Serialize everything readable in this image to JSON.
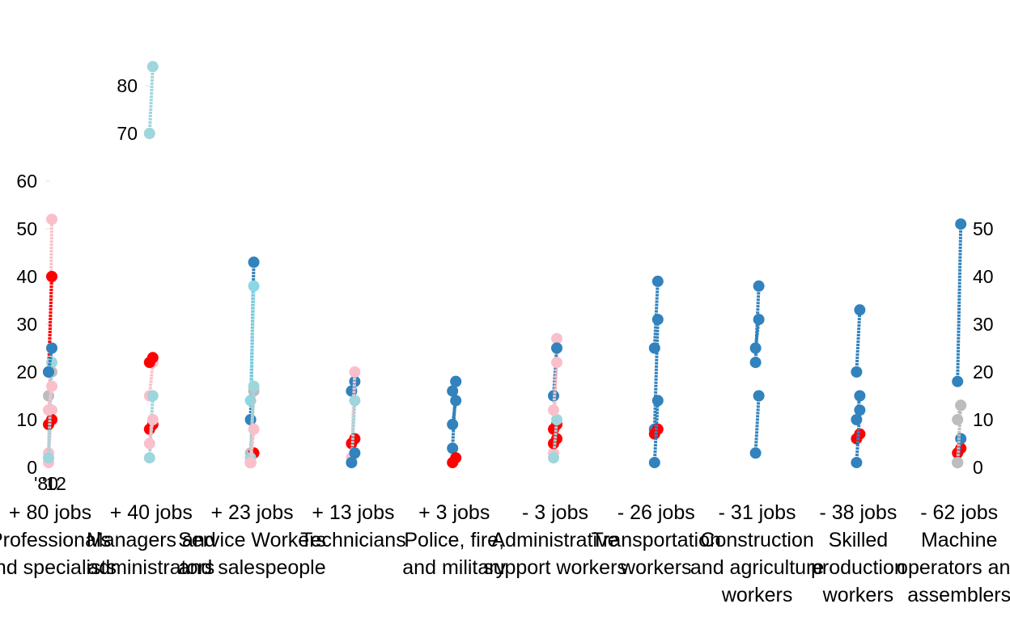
{
  "chart_data": {
    "type": "line",
    "title": "",
    "xlabel": "",
    "ylabel": "",
    "grid": false,
    "legend": "none",
    "time_labels": [
      "'80",
      "'12"
    ],
    "left_axis": {
      "ylim": [
        0,
        90
      ],
      "ticks": [
        0,
        10,
        20,
        30,
        40,
        50,
        60,
        70,
        80
      ]
    },
    "right_axis": {
      "ylim": [
        0,
        55
      ],
      "ticks": [
        0,
        10,
        20,
        30,
        40,
        50
      ]
    },
    "colors": {
      "pink": "#f9c0cb",
      "red": "#ff0000",
      "light_blue": "#9fd6dc",
      "cyan": "#8ad8e4",
      "grey": "#bdbdbd",
      "steel_blue": "#3182bd"
    },
    "categories": [
      {
        "change": "+ 80 jobs",
        "name_lines": [
          "Professionals",
          "and specialists"
        ],
        "segments": [
          {
            "from": 1,
            "to": 52,
            "color": "pink"
          },
          {
            "from": 20,
            "to": 40,
            "color": "red"
          },
          {
            "from": 3,
            "to": 12,
            "color": "pink"
          },
          {
            "from": 9,
            "to": 10,
            "color": "red"
          },
          {
            "from": 15,
            "to": 20,
            "color": "grey"
          },
          {
            "from": 2,
            "to": 22,
            "color": "light_blue"
          },
          {
            "from": 20,
            "to": 25,
            "color": "steel_blue"
          },
          {
            "from": 12,
            "to": 17,
            "color": "pink"
          }
        ]
      },
      {
        "change": "+ 40 jobs",
        "name_lines": [
          "Managers and",
          "administrators"
        ],
        "segments": [
          {
            "from": 70,
            "to": 84,
            "color": "light_blue"
          },
          {
            "from": 15,
            "to": 22,
            "color": "pink"
          },
          {
            "from": 22,
            "to": 23,
            "color": "red"
          },
          {
            "from": 8,
            "to": 9,
            "color": "red"
          },
          {
            "from": 2,
            "to": 15,
            "color": "light_blue"
          },
          {
            "from": 5,
            "to": 10,
            "color": "pink"
          }
        ]
      },
      {
        "change": "+ 23 jobs",
        "name_lines": [
          "Service Workers",
          "and salespeople"
        ],
        "segments": [
          {
            "from": 10,
            "to": 43,
            "color": "steel_blue"
          },
          {
            "from": 14,
            "to": 38,
            "color": "cyan"
          },
          {
            "from": 3,
            "to": 16,
            "color": "grey"
          },
          {
            "from": 1,
            "to": 3,
            "color": "red"
          },
          {
            "from": 2,
            "to": 17,
            "color": "light_blue"
          },
          {
            "from": 1,
            "to": 8,
            "color": "pink"
          }
        ]
      },
      {
        "change": "+ 13 jobs",
        "name_lines": [
          "Technicians"
        ],
        "segments": [
          {
            "from": 16,
            "to": 18,
            "color": "steel_blue"
          },
          {
            "from": 2,
            "to": 20,
            "color": "pink"
          },
          {
            "from": 5,
            "to": 6,
            "color": "red"
          },
          {
            "from": 1,
            "to": 14,
            "color": "light_blue"
          },
          {
            "from": 1,
            "to": 3,
            "color": "steel_blue"
          }
        ]
      },
      {
        "change": "+ 3 jobs",
        "name_lines": [
          "Police, fire,",
          "and military"
        ],
        "segments": [
          {
            "from": 4,
            "to": 18,
            "color": "steel_blue"
          },
          {
            "from": 9,
            "to": 14,
            "color": "steel_blue"
          },
          {
            "from": 1,
            "to": 2,
            "color": "red"
          },
          {
            "from": 16,
            "to": 18,
            "color": "steel_blue"
          }
        ]
      },
      {
        "change": "- 3 jobs",
        "name_lines": [
          "Administrative",
          "support workers"
        ],
        "segments": [
          {
            "from": 3,
            "to": 27,
            "color": "pink"
          },
          {
            "from": 15,
            "to": 25,
            "color": "steel_blue"
          },
          {
            "from": 8,
            "to": 9,
            "color": "red"
          },
          {
            "from": 5,
            "to": 6,
            "color": "red"
          },
          {
            "from": 2,
            "to": 10,
            "color": "light_blue"
          },
          {
            "from": 12,
            "to": 22,
            "color": "pink"
          }
        ]
      },
      {
        "change": "- 26 jobs",
        "name_lines": [
          "Transportation",
          "workers"
        ],
        "segments": [
          {
            "from": 25,
            "to": 39,
            "color": "steel_blue"
          },
          {
            "from": 8,
            "to": 31,
            "color": "steel_blue"
          },
          {
            "from": 7,
            "to": 8,
            "color": "red"
          },
          {
            "from": 1,
            "to": 14,
            "color": "steel_blue"
          }
        ]
      },
      {
        "change": "- 31 jobs",
        "name_lines": [
          "Construction",
          "and agriculture",
          "workers"
        ],
        "segments": [
          {
            "from": 22,
            "to": 38,
            "color": "steel_blue"
          },
          {
            "from": 3,
            "to": 15,
            "color": "steel_blue"
          },
          {
            "from": 25,
            "to": 31,
            "color": "steel_blue"
          }
        ]
      },
      {
        "change": "- 38 jobs",
        "name_lines": [
          "Skilled",
          "production",
          "workers"
        ],
        "segments": [
          {
            "from": 20,
            "to": 33,
            "color": "steel_blue"
          },
          {
            "from": 10,
            "to": 15,
            "color": "steel_blue"
          },
          {
            "from": 6,
            "to": 7,
            "color": "red"
          },
          {
            "from": 1,
            "to": 12,
            "color": "steel_blue"
          }
        ]
      },
      {
        "change": "- 62 jobs",
        "name_lines": [
          "Machine",
          "operators and",
          "assemblers"
        ],
        "segments": [
          {
            "from": 18,
            "to": 51,
            "color": "steel_blue"
          },
          {
            "from": 10,
            "to": 13,
            "color": "grey"
          },
          {
            "from": 3,
            "to": 4,
            "color": "red"
          },
          {
            "from": 1,
            "to": 6,
            "color": "steel_blue"
          },
          {
            "from": 1,
            "to": 13,
            "color": "grey"
          }
        ]
      }
    ]
  }
}
